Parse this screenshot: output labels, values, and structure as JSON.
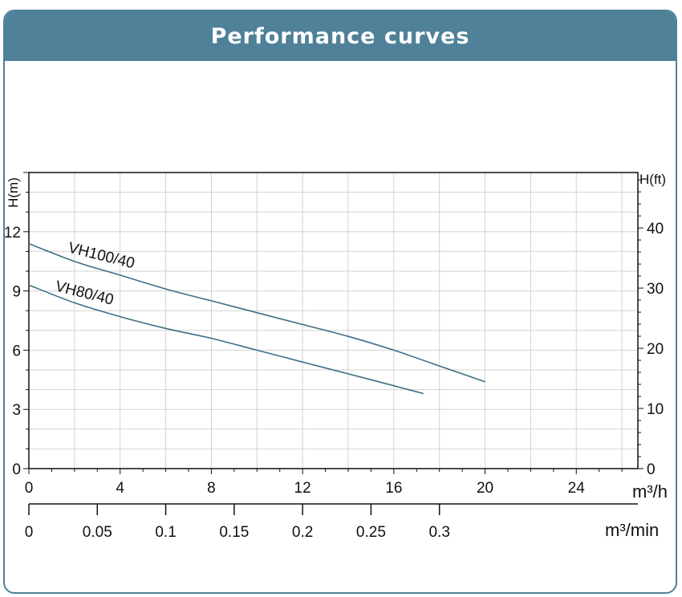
{
  "title": "Performance curves",
  "chart_data": {
    "type": "line",
    "xlabel": "m³/h",
    "xlabel_secondary": "m³/min",
    "ylabel": "H(m)",
    "ylabel_right": "H(ft)",
    "xlim": [
      0,
      26.7
    ],
    "ylim": [
      0,
      15
    ],
    "x_ticks": [
      "0",
      "4",
      "8",
      "12",
      "16",
      "20",
      "24"
    ],
    "x_ticks_secondary": [
      "0",
      "0.05",
      "0.1",
      "0.15",
      "0.2",
      "0.25",
      "0.3"
    ],
    "y_ticks": [
      "0",
      "3",
      "6",
      "9",
      "12"
    ],
    "y_ticks_right": [
      "0",
      "10",
      "20",
      "30",
      "40"
    ],
    "grid": true,
    "series": [
      {
        "name": "VH100/40",
        "x": [
          0,
          2,
          4,
          6,
          8,
          10,
          12,
          14,
          16,
          18,
          20
        ],
        "y": [
          11.4,
          10.5,
          9.8,
          9.1,
          8.5,
          7.9,
          7.3,
          6.7,
          6.0,
          5.2,
          4.4
        ]
      },
      {
        "name": "VH80/40",
        "x": [
          0,
          2,
          4,
          6,
          8,
          10,
          12,
          14,
          16,
          17.3
        ],
        "y": [
          9.3,
          8.4,
          7.7,
          7.1,
          6.6,
          6.0,
          5.4,
          4.8,
          4.2,
          3.8
        ]
      }
    ],
    "colors": {
      "line": "#3e6f86",
      "grid": "#d2d2d2",
      "axis": "#111111"
    }
  }
}
